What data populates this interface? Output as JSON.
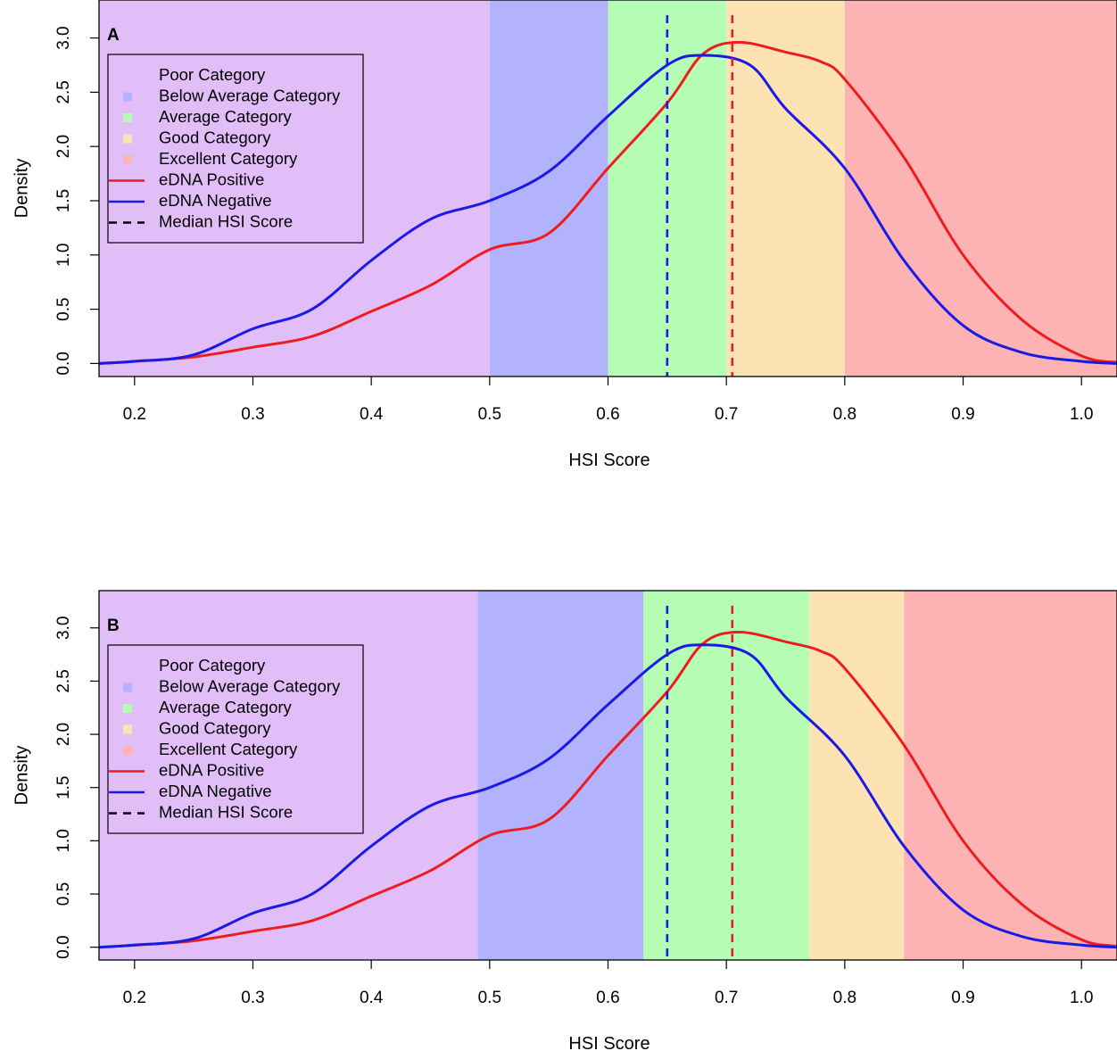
{
  "chart_data": [
    {
      "type": "line",
      "panel_label": "A",
      "xlabel": "HSI Score",
      "ylabel": "Density",
      "xlim": [
        0.17,
        1.03
      ],
      "ylim": [
        -0.12,
        3.35
      ],
      "x_ticks": [
        0.2,
        0.3,
        0.4,
        0.5,
        0.6,
        0.7,
        0.8,
        0.9,
        1.0
      ],
      "x_tick_labels": [
        "0.2",
        "0.3",
        "0.4",
        "0.5",
        "0.6",
        "0.7",
        "0.8",
        "0.9",
        "1.0"
      ],
      "y_ticks": [
        0.0,
        0.5,
        1.0,
        1.5,
        2.0,
        2.5,
        3.0
      ],
      "y_tick_labels": [
        "0.0",
        "0.5",
        "1.0",
        "1.5",
        "2.0",
        "2.5",
        "3.0"
      ],
      "grid": false,
      "legend_position": "top-left",
      "categories": [
        {
          "name": "Poor Category",
          "from": 0.17,
          "to": 0.5,
          "color": "#e1bef8"
        },
        {
          "name": "Below Average Category",
          "from": 0.5,
          "to": 0.6,
          "color": "#b3b3fd"
        },
        {
          "name": "Average Category",
          "from": 0.6,
          "to": 0.7,
          "color": "#b5fdb4"
        },
        {
          "name": "Good Category",
          "from": 0.7,
          "to": 0.8,
          "color": "#fde3b3"
        },
        {
          "name": "Excellent Category",
          "from": 0.8,
          "to": 1.03,
          "color": "#fdb3b3"
        }
      ],
      "series": [
        {
          "name": "eDNA Positive",
          "color": "#ee1c1c",
          "x": [
            0.17,
            0.2,
            0.25,
            0.3,
            0.35,
            0.4,
            0.45,
            0.5,
            0.55,
            0.6,
            0.65,
            0.68,
            0.71,
            0.75,
            0.78,
            0.8,
            0.85,
            0.9,
            0.95,
            1.0,
            1.03
          ],
          "y": [
            0.0,
            0.02,
            0.06,
            0.15,
            0.25,
            0.48,
            0.72,
            1.05,
            1.2,
            1.8,
            2.4,
            2.85,
            2.96,
            2.87,
            2.78,
            2.62,
            1.9,
            1.0,
            0.4,
            0.07,
            0.01
          ]
        },
        {
          "name": "eDNA Negative",
          "color": "#1a1ae6",
          "x": [
            0.17,
            0.2,
            0.25,
            0.3,
            0.35,
            0.4,
            0.45,
            0.5,
            0.55,
            0.6,
            0.65,
            0.68,
            0.72,
            0.75,
            0.8,
            0.85,
            0.9,
            0.95,
            1.0,
            1.03
          ],
          "y": [
            0.0,
            0.02,
            0.08,
            0.32,
            0.5,
            0.95,
            1.33,
            1.5,
            1.77,
            2.28,
            2.75,
            2.84,
            2.75,
            2.35,
            1.8,
            0.95,
            0.35,
            0.1,
            0.02,
            0.0
          ]
        }
      ],
      "medians": [
        {
          "series": "eDNA Negative",
          "x": 0.65,
          "color": "#1a1ae6"
        },
        {
          "series": "eDNA Positive",
          "x": 0.705,
          "color": "#ee1c1c"
        }
      ],
      "legend": [
        {
          "label": "Poor Category",
          "kind": "square",
          "color": "#e1bef8"
        },
        {
          "label": "Below Average Category",
          "kind": "square",
          "color": "#b3b3fd"
        },
        {
          "label": "Average Category",
          "kind": "square",
          "color": "#b5fdb4"
        },
        {
          "label": "Good Category",
          "kind": "square",
          "color": "#fde3b3"
        },
        {
          "label": "Excellent Category",
          "kind": "square",
          "color": "#fdb3b3"
        },
        {
          "label": "eDNA Positive",
          "kind": "line",
          "color": "#ee1c1c"
        },
        {
          "label": "eDNA Negative",
          "kind": "line",
          "color": "#1a1ae6"
        },
        {
          "label": "Median HSI Score",
          "kind": "dashed",
          "color": "#000000"
        }
      ]
    },
    {
      "type": "line",
      "panel_label": "B",
      "xlabel": "HSI Score",
      "ylabel": "Density",
      "xlim": [
        0.17,
        1.03
      ],
      "ylim": [
        -0.12,
        3.35
      ],
      "x_ticks": [
        0.2,
        0.3,
        0.4,
        0.5,
        0.6,
        0.7,
        0.8,
        0.9,
        1.0
      ],
      "x_tick_labels": [
        "0.2",
        "0.3",
        "0.4",
        "0.5",
        "0.6",
        "0.7",
        "0.8",
        "0.9",
        "1.0"
      ],
      "y_ticks": [
        0.0,
        0.5,
        1.0,
        1.5,
        2.0,
        2.5,
        3.0
      ],
      "y_tick_labels": [
        "0.0",
        "0.5",
        "1.0",
        "1.5",
        "2.0",
        "2.5",
        "3.0"
      ],
      "grid": false,
      "legend_position": "top-left",
      "categories": [
        {
          "name": "Poor Category",
          "from": 0.17,
          "to": 0.49,
          "color": "#e1bef8"
        },
        {
          "name": "Below Average Category",
          "from": 0.49,
          "to": 0.63,
          "color": "#b3b3fd"
        },
        {
          "name": "Average Category",
          "from": 0.63,
          "to": 0.77,
          "color": "#b5fdb4"
        },
        {
          "name": "Good Category",
          "from": 0.77,
          "to": 0.85,
          "color": "#fde3b3"
        },
        {
          "name": "Excellent Category",
          "from": 0.85,
          "to": 1.03,
          "color": "#fdb3b3"
        }
      ],
      "series": [
        {
          "name": "eDNA Positive",
          "color": "#ee1c1c",
          "x": [
            0.17,
            0.2,
            0.25,
            0.3,
            0.35,
            0.4,
            0.45,
            0.5,
            0.55,
            0.6,
            0.65,
            0.68,
            0.71,
            0.75,
            0.78,
            0.8,
            0.85,
            0.9,
            0.95,
            1.0,
            1.03
          ],
          "y": [
            0.0,
            0.02,
            0.06,
            0.15,
            0.25,
            0.48,
            0.72,
            1.05,
            1.2,
            1.8,
            2.4,
            2.85,
            2.96,
            2.87,
            2.78,
            2.62,
            1.9,
            1.0,
            0.4,
            0.07,
            0.01
          ]
        },
        {
          "name": "eDNA Negative",
          "color": "#1a1ae6",
          "x": [
            0.17,
            0.2,
            0.25,
            0.3,
            0.35,
            0.4,
            0.45,
            0.5,
            0.55,
            0.6,
            0.65,
            0.68,
            0.72,
            0.75,
            0.8,
            0.85,
            0.9,
            0.95,
            1.0,
            1.03
          ],
          "y": [
            0.0,
            0.02,
            0.08,
            0.32,
            0.5,
            0.95,
            1.33,
            1.5,
            1.77,
            2.28,
            2.75,
            2.84,
            2.75,
            2.35,
            1.8,
            0.95,
            0.35,
            0.1,
            0.02,
            0.0
          ]
        }
      ],
      "medians": [
        {
          "series": "eDNA Negative",
          "x": 0.65,
          "color": "#1a1ae6"
        },
        {
          "series": "eDNA Positive",
          "x": 0.705,
          "color": "#ee1c1c"
        }
      ],
      "legend": [
        {
          "label": "Poor Category",
          "kind": "square",
          "color": "#e1bef8"
        },
        {
          "label": "Below Average Category",
          "kind": "square",
          "color": "#b3b3fd"
        },
        {
          "label": "Average Category",
          "kind": "square",
          "color": "#b5fdb4"
        },
        {
          "label": "Good Category",
          "kind": "square",
          "color": "#fde3b3"
        },
        {
          "label": "Excellent Category",
          "kind": "square",
          "color": "#fdb3b3"
        },
        {
          "label": "eDNA Positive",
          "kind": "line",
          "color": "#ee1c1c"
        },
        {
          "label": "eDNA Negative",
          "kind": "line",
          "color": "#1a1ae6"
        },
        {
          "label": "Median HSI Score",
          "kind": "dashed",
          "color": "#000000"
        }
      ]
    }
  ]
}
